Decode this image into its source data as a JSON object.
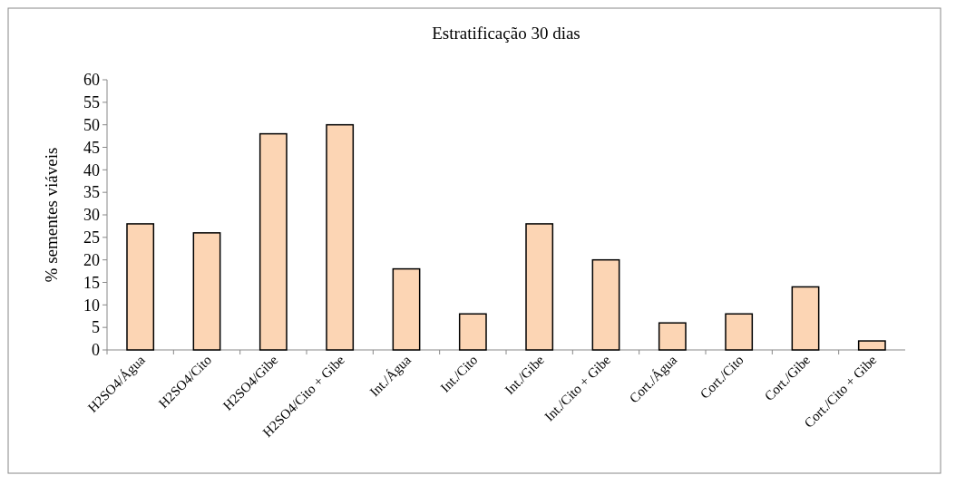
{
  "chart_data": {
    "type": "bar",
    "title": "Estratificação 30 dias",
    "ylabel": "% sementes viáveis",
    "categories": [
      "H2SO4/Água",
      "H2SO4/Cito",
      "H2SO4/Gibe",
      "H2SO4/Cito + Gibe",
      "Int./Água",
      "Int./Cito",
      "Int./Gibe",
      "Int./Cito + Gibe",
      "Cort./Água",
      "Cort./Cito",
      "Cort./Gibe",
      "Cort./Cito + Gibe"
    ],
    "values": [
      28,
      26,
      48,
      50,
      18,
      8,
      28,
      20,
      6,
      8,
      14,
      2
    ],
    "color": "#fcd5b4",
    "ylim": [
      0,
      60
    ],
    "yticks": [
      0,
      5,
      10,
      15,
      20,
      25,
      30,
      35,
      40,
      45,
      50,
      55,
      60
    ],
    "grid": false
  }
}
